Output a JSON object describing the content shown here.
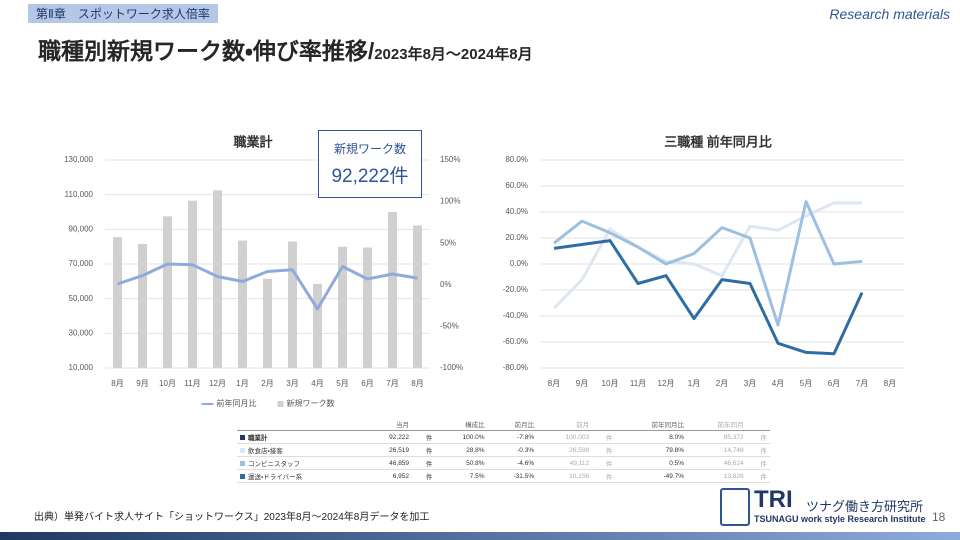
{
  "header": {
    "chapter": "第Ⅱ章　スポットワーク求人倍率",
    "tag": "Research materials",
    "title": "職種別新規ワーク数・伸び率推移/",
    "period": "2023年8月～2024年8月"
  },
  "callout": {
    "label": "新規ワーク数",
    "value": "92,222件"
  },
  "chart_data": [
    {
      "type": "combo",
      "title": "職業計",
      "categories": [
        "8月",
        "9月",
        "10月",
        "11月",
        "12月",
        "1月",
        "2月",
        "3月",
        "4月",
        "5月",
        "6月",
        "7月",
        "8月"
      ],
      "series": [
        {
          "name": "前年同月比",
          "type": "line",
          "axis": "y2",
          "color": "#8faadc",
          "values": [
            1,
            11,
            25,
            24,
            10,
            4,
            16,
            18,
            -29,
            22,
            7,
            13,
            8
          ]
        },
        {
          "name": "新規ワーク数",
          "type": "bar",
          "color": "#d0d0d0",
          "values": [
            85500,
            81500,
            97500,
            106500,
            112500,
            83500,
            61500,
            83000,
            58500,
            80000,
            79500,
            100000,
            92222
          ]
        }
      ],
      "ylim": [
        10000,
        130000
      ],
      "yticks": [
        {
          "value": 10000,
          "label": "10,000"
        },
        {
          "value": 30000,
          "label": "30,000"
        },
        {
          "value": 50000,
          "label": "50,000"
        },
        {
          "value": 70000,
          "label": "70,000"
        },
        {
          "value": 90000,
          "label": "90,000"
        },
        {
          "value": 110000,
          "label": "110,000"
        },
        {
          "value": 130000,
          "label": "130,000"
        }
      ],
      "y2lim": [
        -100,
        150
      ],
      "y2ticks": [
        {
          "value": -100,
          "label": "-100%"
        },
        {
          "value": -50,
          "label": "-50%"
        },
        {
          "value": 0,
          "label": "0%"
        },
        {
          "value": 50,
          "label": "50%"
        },
        {
          "value": 100,
          "label": "100%"
        },
        {
          "value": 150,
          "label": "150%"
        }
      ],
      "grid": true,
      "legend": "bottom"
    },
    {
      "type": "line",
      "title": "三職種 前年同月比",
      "categories": [
        "8月",
        "9月",
        "10月",
        "11月",
        "12月",
        "1月",
        "2月",
        "3月",
        "4月",
        "5月",
        "6月",
        "7月",
        "8月"
      ],
      "series": [
        {
          "color": "#dde7f3",
          "values": [
            -34,
            -12,
            27,
            13,
            2,
            0,
            -9,
            29,
            26,
            37,
            47,
            47,
            null
          ]
        },
        {
          "color": "#9dc0e2",
          "values": [
            16,
            33,
            24,
            13,
            0,
            8,
            28,
            20,
            -47,
            48,
            0,
            2,
            null
          ]
        },
        {
          "color": "#2e6da4",
          "values": [
            12,
            15,
            18,
            -15,
            -9,
            -42,
            -12,
            -15,
            -61,
            -68,
            -69,
            -22,
            null
          ]
        }
      ],
      "ylim": [
        -80,
        80
      ],
      "yticks": [
        {
          "value": -80,
          "label": "-80.0%"
        },
        {
          "value": -60,
          "label": "-60.0%"
        },
        {
          "value": -40,
          "label": "-40.0%"
        },
        {
          "value": -20,
          "label": "-20.0%"
        },
        {
          "value": 0,
          "label": "0.0%"
        },
        {
          "value": 20,
          "label": "20.0%"
        },
        {
          "value": 40,
          "label": "40.0%"
        },
        {
          "value": 60,
          "label": "60.0%"
        },
        {
          "value": 80,
          "label": "80.0%"
        }
      ],
      "grid": true
    }
  ],
  "table": {
    "header": [
      "当月",
      "構成比",
      "前月比",
      "前月",
      "前年同月比",
      "前年同月"
    ],
    "rows": [
      [
        "職業計",
        "92,222",
        "件",
        "100.0%",
        "-7.8%",
        "100,003",
        "件",
        "8.0%",
        "85,372",
        "件"
      ],
      [
        "飲食店・接客",
        "26,519",
        "件",
        "28.8%",
        "-0.3%",
        "26,598",
        "件",
        "79.8%",
        "14,748",
        "件"
      ],
      [
        "コンビニスタッフ",
        "46,859",
        "件",
        "50.8%",
        "-4.6%",
        "49,112",
        "件",
        "0.5%",
        "46,624",
        "件"
      ],
      [
        "運送・ドライバー系",
        "6,952",
        "件",
        "7.5%",
        "-31.5%",
        "10,156",
        "件",
        "-49.7%",
        "13,828",
        "件"
      ]
    ]
  },
  "footer": {
    "source": "出典）単発バイト求人サイト「ショットワークス」2023年8月～2024年8月データを加工",
    "page": "18",
    "logo": "TRI",
    "org": "ツナグ働き方研究所",
    "org_en": "TSUNAGU work style Research Institute"
  }
}
